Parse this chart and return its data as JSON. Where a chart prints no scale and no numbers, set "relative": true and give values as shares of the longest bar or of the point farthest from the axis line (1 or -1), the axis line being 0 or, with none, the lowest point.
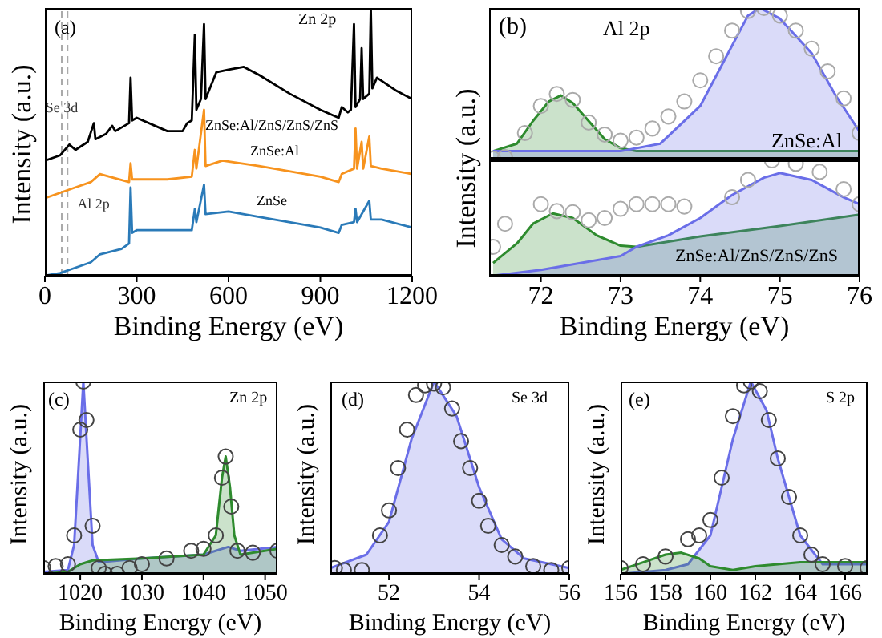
{
  "chart_data": [
    {
      "type": "line",
      "relative": true,
      "xlabel": "Binding Energy (eV)",
      "ylabel": "Intensity (a.u.)",
      "xlim": [
        0,
        1200
      ],
      "xticks": [
        0,
        300,
        600,
        900,
        1200
      ],
      "annotations": [
        "(a)",
        "Zn 2p"
      ],
      "ref_lines": [
        {
          "axis": "x",
          "value": 55,
          "label": "Se 3d",
          "color": "#aaaaaa",
          "line_style": "dashed"
        },
        {
          "axis": "x",
          "value": 74,
          "label": "Al 2p",
          "color": "#aaaaaa",
          "line_style": "dashed"
        }
      ],
      "series": [
        {
          "name": "ZnSe:Al/ZnS/ZnS/ZnS",
          "color": "#000000",
          "x": [
            0,
            50,
            80,
            100,
            140,
            160,
            165,
            200,
            220,
            230,
            275,
            280,
            285,
            300,
            400,
            450,
            465,
            480,
            490,
            495,
            510,
            520,
            525,
            560,
            600,
            650,
            700,
            800,
            900,
            960,
            970,
            990,
            1000,
            1010,
            1015,
            1030,
            1035,
            1040,
            1060,
            1065,
            1070,
            1085,
            1150,
            1200
          ],
          "values": [
            0.43,
            0.45,
            0.49,
            0.47,
            0.5,
            0.57,
            0.51,
            0.53,
            0.56,
            0.54,
            0.57,
            0.74,
            0.58,
            0.59,
            0.54,
            0.54,
            0.57,
            0.58,
            0.9,
            0.62,
            0.66,
            0.94,
            0.66,
            0.76,
            0.77,
            0.78,
            0.75,
            0.68,
            0.62,
            0.59,
            0.63,
            0.61,
            0.62,
            0.94,
            0.63,
            0.66,
            0.85,
            0.66,
            0.68,
            1.0,
            0.7,
            0.74,
            0.69,
            0.66
          ]
        },
        {
          "name": "ZnSe:Al",
          "color": "#f7931e",
          "x": [
            0,
            100,
            150,
            180,
            275,
            280,
            285,
            400,
            480,
            490,
            495,
            520,
            525,
            580,
            700,
            900,
            960,
            970,
            1010,
            1015,
            1020,
            1035,
            1040,
            1060,
            1065,
            1100,
            1200
          ],
          "values": [
            0.29,
            0.33,
            0.35,
            0.38,
            0.35,
            0.42,
            0.36,
            0.36,
            0.37,
            0.47,
            0.4,
            0.62,
            0.41,
            0.43,
            0.41,
            0.37,
            0.35,
            0.38,
            0.4,
            0.55,
            0.4,
            0.5,
            0.4,
            0.52,
            0.41,
            0.4,
            0.38
          ]
        },
        {
          "name": "ZnSe",
          "color": "#2a7ab8",
          "x": [
            0,
            50,
            100,
            150,
            180,
            250,
            275,
            280,
            285,
            300,
            400,
            480,
            490,
            495,
            520,
            525,
            600,
            700,
            900,
            960,
            970,
            1010,
            1015,
            1020,
            1060,
            1065,
            1100,
            1200
          ],
          "values": [
            0,
            0.01,
            0.03,
            0.05,
            0.08,
            0.1,
            0.12,
            0.33,
            0.16,
            0.17,
            0.17,
            0.17,
            0.25,
            0.2,
            0.34,
            0.23,
            0.24,
            0.22,
            0.18,
            0.16,
            0.19,
            0.2,
            0.25,
            0.2,
            0.28,
            0.21,
            0.21,
            0.18
          ]
        }
      ]
    },
    {
      "type": "area",
      "relative": true,
      "ylabel": "Intensity (a.u.)",
      "xlim": [
        71.35,
        76
      ],
      "xticks": [
        72,
        73,
        74,
        75,
        76
      ],
      "tick_labels": false,
      "annotations": [
        "(b)",
        "Al 2p",
        "ZnSe:Al"
      ],
      "series": [
        {
          "color": "#2e8b2e",
          "x": [
            71.4,
            71.7,
            71.9,
            72.1,
            72.25,
            72.4,
            72.6,
            72.8,
            73.0,
            73.2,
            76
          ],
          "values": [
            0.05,
            0.1,
            0.25,
            0.38,
            0.42,
            0.37,
            0.25,
            0.13,
            0.07,
            0.05,
            0.05
          ]
        },
        {
          "color": "#6a6ee8",
          "x": [
            71.4,
            73,
            73.5,
            74,
            74.3,
            74.6,
            74.75,
            75,
            75.4,
            75.7,
            76
          ],
          "values": [
            0.05,
            0.05,
            0.1,
            0.35,
            0.65,
            0.95,
            1.0,
            0.93,
            0.7,
            0.42,
            0.18
          ]
        },
        {
          "type": "scatter",
          "marker": "circle",
          "color": "#aaaaaa",
          "x": [
            71.4,
            71.55,
            71.8,
            72.0,
            72.2,
            72.4,
            72.6,
            72.8,
            73.0,
            73.2,
            73.4,
            73.6,
            73.8,
            74.0,
            74.2,
            74.4,
            74.6,
            74.8,
            75.0,
            75.2,
            75.4,
            75.6,
            75.8,
            76
          ],
          "values": [
            0,
            0.01,
            0.17,
            0.35,
            0.43,
            0.39,
            0.24,
            0.16,
            0.12,
            0.14,
            0.2,
            0.28,
            0.38,
            0.52,
            0.68,
            0.85,
            0.98,
            1.0,
            0.95,
            0.85,
            0.73,
            0.58,
            0.4,
            0.17
          ]
        }
      ]
    },
    {
      "type": "area",
      "relative": true,
      "xlabel": "Binding Energy (eV)",
      "xlim": [
        71.35,
        76
      ],
      "xticks": [
        72,
        73,
        74,
        75,
        76
      ],
      "tick_labels": "x",
      "annotations": [
        "ZnSe:Al/ZnS/ZnS/ZnS"
      ],
      "series": [
        {
          "color": "#2e8b2e",
          "x": [
            71.4,
            71.7,
            71.9,
            72.15,
            72.4,
            72.7,
            73.0,
            73.2,
            74,
            75,
            76
          ],
          "values": [
            0.11,
            0.28,
            0.45,
            0.54,
            0.5,
            0.35,
            0.26,
            0.25,
            0.34,
            0.43,
            0.53
          ]
        },
        {
          "color": "#6a6ee8",
          "x": [
            71.4,
            72,
            73,
            73.2,
            73.6,
            74,
            74.4,
            74.8,
            75.0,
            75.4,
            75.8,
            76
          ],
          "values": [
            0,
            0.05,
            0.17,
            0.25,
            0.35,
            0.5,
            0.7,
            0.85,
            0.89,
            0.83,
            0.68,
            0.62
          ]
        },
        {
          "type": "scatter",
          "marker": "circle",
          "color": "#aaaaaa",
          "x": [
            71.4,
            71.55,
            72.0,
            72.2,
            72.4,
            72.6,
            72.8,
            73.0,
            73.2,
            73.4,
            73.6,
            73.8,
            74.4,
            74.6,
            74.9,
            75.2,
            75.5,
            75.8,
            76
          ],
          "values": [
            0.25,
            0.45,
            0.62,
            0.56,
            0.55,
            0.48,
            0.5,
            0.58,
            0.62,
            0.62,
            0.62,
            0.6,
            0.68,
            0.83,
            1.0,
            0.97,
            0.9,
            0.75,
            0.62
          ]
        }
      ]
    },
    {
      "type": "area",
      "relative": true,
      "xlabel": "Binding Energy (eV)",
      "ylabel": "Intensity (a.u.)",
      "xlim": [
        1014,
        1052
      ],
      "xticks": [
        1020,
        1030,
        1040,
        1050
      ],
      "annotations": [
        "(c)",
        "Zn 2p"
      ],
      "series": [
        {
          "color": "#6a6ee8",
          "x": [
            1014,
            1018,
            1019,
            1019.8,
            1020.5,
            1021.2,
            1022,
            1023,
            1030,
            1040,
            1044,
            1046,
            1052
          ],
          "values": [
            0.01,
            0.02,
            0.15,
            0.6,
            1.0,
            0.6,
            0.15,
            0.06,
            0.08,
            0.1,
            0.14,
            0.12,
            0.14
          ]
        },
        {
          "color": "#2e8b2e",
          "x": [
            1014,
            1018,
            1020,
            1022,
            1030,
            1040,
            1042,
            1043,
            1043.6,
            1044.3,
            1045,
            1046,
            1052
          ],
          "values": [
            0,
            0.01,
            0.05,
            0.07,
            0.08,
            0.1,
            0.2,
            0.5,
            0.61,
            0.45,
            0.2,
            0.1,
            0.13
          ]
        },
        {
          "type": "scatter",
          "marker": "circle",
          "color": "#444444",
          "x": [
            1014,
            1016,
            1018,
            1019,
            1020,
            1020.5,
            1021,
            1022,
            1023,
            1024,
            1026,
            1028,
            1030,
            1034,
            1038,
            1040,
            1042,
            1043,
            1043.6,
            1044.5,
            1045.5,
            1048,
            1052
          ],
          "values": [
            0.03,
            0.04,
            0.05,
            0.2,
            0.75,
            1.0,
            0.8,
            0.25,
            0.03,
            0,
            0,
            0.03,
            0.05,
            0.08,
            0.12,
            0.13,
            0.2,
            0.5,
            0.61,
            0.35,
            0.12,
            0.11,
            0.12
          ]
        }
      ]
    },
    {
      "type": "area",
      "relative": true,
      "xlabel": "Binding Energy (eV)",
      "ylabel": "Intensity (a.u.)",
      "xlim": [
        50.7,
        56
      ],
      "xticks": [
        52,
        54,
        56
      ],
      "annotations": [
        "(d)",
        "Se 3d"
      ],
      "series": [
        {
          "color": "#6a6ee8",
          "x": [
            50.7,
            51.5,
            52,
            52.5,
            53,
            53.5,
            54,
            54.5,
            55,
            56
          ],
          "values": [
            0.03,
            0.1,
            0.27,
            0.7,
            1.0,
            0.82,
            0.45,
            0.18,
            0.08,
            0.03
          ]
        },
        {
          "type": "scatter",
          "marker": "circle",
          "color": "#444444",
          "x": [
            50.8,
            51,
            51.4,
            51.8,
            52,
            52.2,
            52.4,
            52.6,
            52.8,
            53.0,
            53.2,
            53.4,
            53.6,
            53.8,
            54.0,
            54.2,
            54.5,
            54.8,
            55.2,
            55.6,
            56
          ],
          "values": [
            0.03,
            0.02,
            0.02,
            0.2,
            0.33,
            0.55,
            0.75,
            0.93,
            0.98,
            0.99,
            0.97,
            0.86,
            0.69,
            0.55,
            0.38,
            0.25,
            0.15,
            0.09,
            0.04,
            0.02,
            0.03
          ]
        }
      ]
    },
    {
      "type": "area",
      "relative": true,
      "xlabel": "Binding Energy (eV)",
      "ylabel": "Intensity (a.u.)",
      "xlim": [
        156,
        167
      ],
      "xticks": [
        156,
        158,
        160,
        162,
        164,
        166
      ],
      "annotations": [
        "(e)",
        "S 2p"
      ],
      "series": [
        {
          "color": "#6a6ee8",
          "x": [
            156,
            158,
            159,
            160,
            161,
            161.8,
            162.5,
            163,
            164,
            165,
            167
          ],
          "values": [
            0,
            0.02,
            0.05,
            0.2,
            0.7,
            1.0,
            0.85,
            0.6,
            0.2,
            0.05,
            0.05
          ]
        },
        {
          "color": "#2e8b2e",
          "x": [
            156,
            157,
            158,
            158.7,
            159.5,
            160,
            161,
            162,
            164,
            167
          ],
          "values": [
            0.02,
            0.06,
            0.1,
            0.11,
            0.08,
            0.04,
            0.02,
            0.04,
            0.06,
            0.06
          ]
        },
        {
          "type": "scatter",
          "marker": "circle",
          "color": "#444444",
          "x": [
            156,
            157,
            158,
            159,
            159.5,
            160,
            160.5,
            161,
            161.5,
            161.8,
            162.2,
            162.6,
            163,
            163.5,
            164,
            164.5,
            165,
            166,
            167
          ],
          "values": [
            0.03,
            0.05,
            0.09,
            0.18,
            0.2,
            0.28,
            0.5,
            0.82,
            0.98,
            1.0,
            0.95,
            0.8,
            0.6,
            0.4,
            0.2,
            0.1,
            0.05,
            0.04,
            0.03
          ]
        }
      ]
    }
  ]
}
